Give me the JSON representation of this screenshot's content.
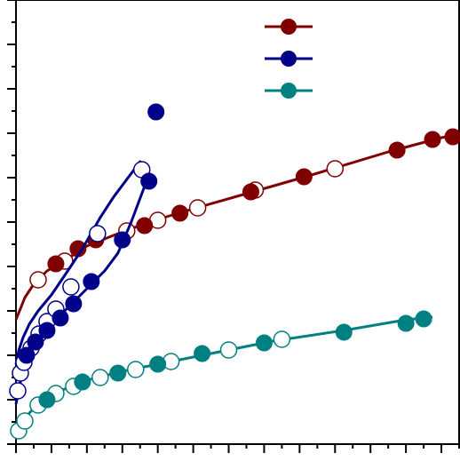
{
  "chart_data": {
    "type": "scatter",
    "title": "",
    "xlabel": "",
    "ylabel": "",
    "xlim": [
      0,
      500
    ],
    "ylim": [
      0,
      500
    ],
    "grid": false,
    "legend_placement": "top-right",
    "x_ticks": [
      0,
      20,
      40,
      60,
      80,
      100,
      120,
      140,
      160,
      180,
      200,
      220,
      240,
      260,
      280,
      300,
      320,
      340,
      360,
      380,
      400,
      420,
      440,
      460,
      480,
      500
    ],
    "y_ticks": [
      0,
      25,
      50,
      75,
      100,
      125,
      150,
      175,
      200,
      225,
      250,
      275,
      300,
      325,
      350,
      375,
      400,
      425,
      450,
      475,
      500
    ],
    "series": [
      {
        "color": "#800000",
        "line": [
          [
            0,
            140
          ],
          [
            10,
            165
          ],
          [
            20,
            180
          ],
          [
            35,
            195
          ],
          [
            60,
            210
          ],
          [
            80,
            223
          ],
          [
            110,
            235
          ],
          [
            150,
            250
          ],
          [
            200,
            265
          ],
          [
            260,
            282
          ],
          [
            330,
            302
          ],
          [
            420,
            329
          ],
          [
            480,
            345
          ],
          [
            495,
            348
          ]
        ],
        "filled": [
          [
            45,
            203
          ],
          [
            70,
            220
          ],
          [
            90,
            230
          ],
          [
            145,
            246
          ],
          [
            185,
            260
          ],
          [
            265,
            284
          ],
          [
            325,
            301
          ],
          [
            430,
            331
          ],
          [
            470,
            343
          ],
          [
            493,
            346
          ]
        ],
        "open": [
          [
            25,
            185
          ],
          [
            55,
            206
          ],
          [
            125,
            240
          ],
          [
            160,
            252
          ],
          [
            205,
            266
          ],
          [
            270,
            286
          ],
          [
            360,
            310
          ]
        ]
      },
      {
        "color": "#00008B",
        "line": [
          [
            0,
            45
          ],
          [
            5,
            70
          ],
          [
            10,
            88
          ],
          [
            20,
            105
          ],
          [
            30,
            120
          ],
          [
            40,
            135
          ],
          [
            55,
            150
          ],
          [
            70,
            165
          ],
          [
            85,
            180
          ],
          [
            100,
            195
          ],
          [
            115,
            215
          ],
          [
            130,
            250
          ],
          [
            145,
            290
          ],
          [
            150,
            308
          ],
          [
            140,
            318
          ],
          [
            110,
            278
          ],
          [
            95,
            255
          ],
          [
            75,
            220
          ],
          [
            55,
            190
          ],
          [
            40,
            168
          ],
          [
            25,
            150
          ],
          [
            15,
            135
          ],
          [
            8,
            120
          ],
          [
            3,
            105
          ],
          [
            0,
            90
          ]
        ],
        "filled": [
          [
            12,
            100
          ],
          [
            22,
            115
          ],
          [
            35,
            128
          ],
          [
            50,
            142
          ],
          [
            65,
            158
          ],
          [
            85,
            183
          ],
          [
            120,
            230
          ],
          [
            150,
            296
          ],
          [
            158,
            374
          ]
        ],
        "open": [
          [
            2,
            60
          ],
          [
            5,
            80
          ],
          [
            9,
            92
          ],
          [
            17,
            108
          ],
          [
            26,
            124
          ],
          [
            35,
            138
          ],
          [
            45,
            152
          ],
          [
            62,
            177
          ],
          [
            92,
            237
          ],
          [
            142,
            309
          ]
        ]
      },
      {
        "color": "#008080",
        "line": [
          [
            0,
            10
          ],
          [
            5,
            20
          ],
          [
            15,
            35
          ],
          [
            30,
            50
          ],
          [
            50,
            60
          ],
          [
            80,
            72
          ],
          [
            120,
            82
          ],
          [
            170,
            92
          ],
          [
            230,
            104
          ],
          [
            290,
            116
          ],
          [
            370,
            128
          ],
          [
            440,
            140
          ],
          [
            470,
            143
          ]
        ],
        "filled": [
          [
            35,
            50
          ],
          [
            75,
            70
          ],
          [
            115,
            80
          ],
          [
            160,
            90
          ],
          [
            210,
            102
          ],
          [
            280,
            114
          ],
          [
            370,
            126
          ],
          [
            440,
            136
          ],
          [
            460,
            141
          ]
        ],
        "open": [
          [
            3,
            15
          ],
          [
            10,
            26
          ],
          [
            25,
            44
          ],
          [
            45,
            57
          ],
          [
            65,
            65
          ],
          [
            95,
            75
          ],
          [
            135,
            84
          ],
          [
            175,
            93
          ],
          [
            240,
            106
          ],
          [
            300,
            118
          ]
        ]
      }
    ]
  }
}
